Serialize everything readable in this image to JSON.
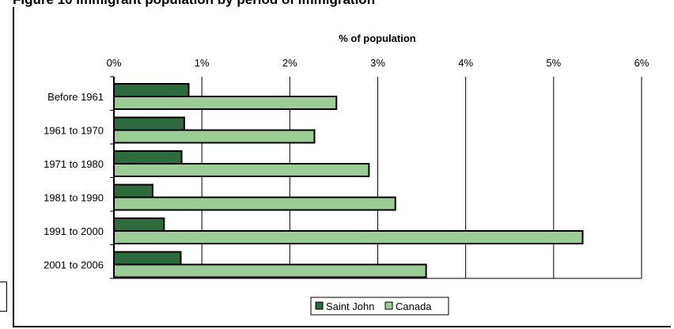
{
  "figure": {
    "title": "Figure 10 Immigrant population by period of immigration"
  },
  "colors": {
    "saint_john": "#2e6b3c",
    "canada": "#9ccd97"
  },
  "chart_data": {
    "type": "bar",
    "orientation": "horizontal",
    "title": "% of population",
    "xlabel": "% of population",
    "ylabel": "",
    "xlim": [
      0,
      6
    ],
    "xticks": [
      "0%",
      "1%",
      "2%",
      "3%",
      "4%",
      "5%",
      "6%"
    ],
    "grid": true,
    "legend_position": "bottom",
    "categories": [
      "Before 1961",
      "1961 to 1970",
      "1971 to 1980",
      "1981 to 1990",
      "1991 to 2000",
      "2001 to 2006"
    ],
    "series": [
      {
        "name": "Saint John",
        "values": [
          0.85,
          0.8,
          0.77,
          0.44,
          0.57,
          0.76
        ]
      },
      {
        "name": "Canada",
        "values": [
          2.53,
          2.28,
          2.9,
          3.2,
          5.33,
          3.55
        ]
      }
    ]
  }
}
